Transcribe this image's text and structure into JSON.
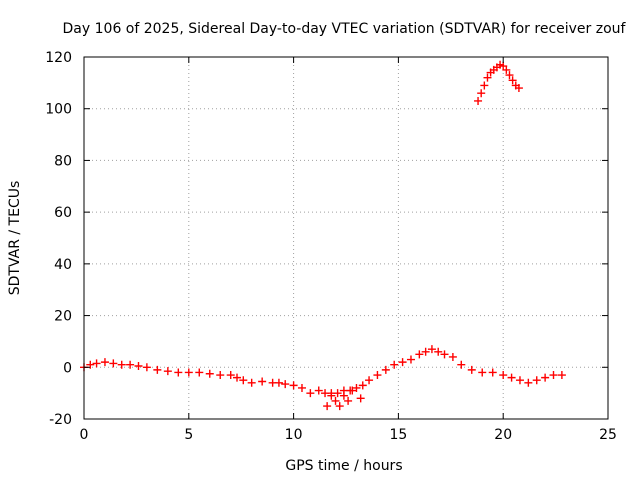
{
  "chart_data": {
    "type": "scatter",
    "title": "Day 106 of 2025, Sidereal Day-to-day VTEC variation (SDTVAR) for receiver zouf",
    "xlabel": "GPS time / hours",
    "ylabel": "SDTVAR / TECUs",
    "xlim": [
      0,
      25
    ],
    "ylim": [
      -20,
      120
    ],
    "xticks": [
      0,
      5,
      10,
      15,
      20,
      25
    ],
    "yticks": [
      -20,
      0,
      20,
      40,
      60,
      80,
      100,
      120
    ],
    "grid": true,
    "marker": "plus",
    "color": "#ff0000",
    "series": [
      {
        "name": "SDTVAR",
        "x": [
          0.0,
          0.3,
          0.6,
          1.0,
          1.4,
          1.8,
          2.2,
          2.6,
          3.0,
          3.5,
          4.0,
          4.5,
          5.0,
          5.5,
          6.0,
          6.5,
          7.0,
          7.3,
          7.6,
          8.0,
          8.5,
          9.0,
          9.3,
          9.6,
          10.0,
          10.4,
          10.8,
          11.2,
          11.5,
          11.8,
          12.1,
          12.4,
          12.7,
          13.0,
          13.3,
          13.6,
          14.0,
          14.4,
          14.8,
          15.2,
          15.6,
          16.0,
          16.3,
          16.6,
          16.9,
          17.2,
          17.6,
          18.0,
          18.5,
          19.0,
          19.5,
          20.0,
          20.4,
          20.8,
          21.2,
          21.6,
          22.0,
          22.4,
          22.8,
          11.6,
          12.0,
          12.4,
          12.8,
          13.2,
          11.8,
          12.2,
          12.6,
          18.8,
          18.95,
          19.1,
          19.25,
          19.4,
          19.55,
          19.7,
          19.85,
          20.0,
          20.15,
          20.3,
          20.45,
          20.6,
          20.75
        ],
        "y": [
          0,
          1,
          1.5,
          2,
          1.5,
          1,
          1,
          0.5,
          0,
          -1,
          -1.5,
          -2,
          -2,
          -2,
          -2.5,
          -3,
          -3,
          -4,
          -5,
          -6,
          -5.5,
          -6,
          -6,
          -6.5,
          -7,
          -8,
          -10,
          -9,
          -10,
          -11,
          -10,
          -9,
          -9,
          -8,
          -7,
          -5,
          -3,
          -1,
          1,
          2,
          3,
          5,
          6,
          7,
          6,
          5,
          4,
          1,
          -1,
          -2,
          -2,
          -3,
          -4,
          -5,
          -6,
          -5,
          -4,
          -3,
          -3,
          -15,
          -13,
          -11,
          -9,
          -12,
          -10,
          -15,
          -13,
          103,
          106,
          109,
          112,
          114,
          115,
          116,
          117,
          116.5,
          115,
          113,
          111,
          109,
          108
        ]
      }
    ]
  }
}
